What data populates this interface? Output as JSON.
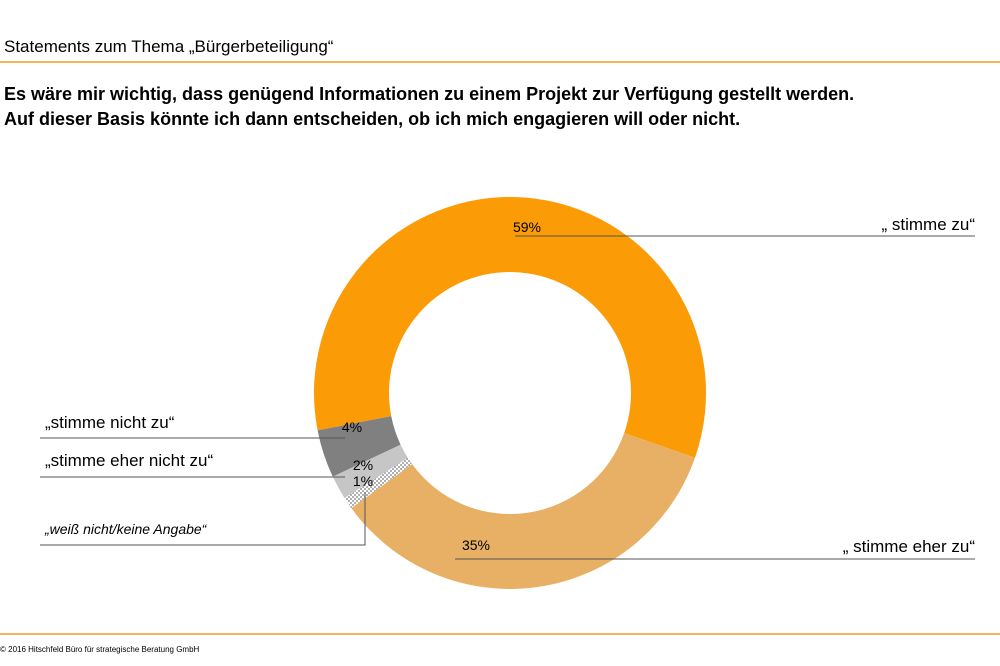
{
  "header": "Statements zum Thema „Bürgerbeteiligung“",
  "chart_data": {
    "type": "pie",
    "title": [
      "Es wäre mir wichtig, dass genügend Informationen zu einem Projekt zur Verfügung gestellt werden.",
      "Auf dieser Basis könnte ich dann entscheiden, ob ich mich engagieren will oder nicht."
    ],
    "categories": [
      "„ stimme zu“",
      "„ stimme eher zu“",
      "„weiß nicht/keine Angabe“",
      "„stimme eher nicht zu“",
      "„stimme nicht zu“"
    ],
    "values": [
      59,
      35,
      1,
      2,
      4
    ],
    "value_labels": [
      "59%",
      "35%",
      "1%",
      "2%",
      "4%"
    ],
    "colors": [
      "#fb9b06",
      "#e7b064",
      "dotted",
      "#c6c6c6",
      "#808080"
    ]
  },
  "footer": "© 2016 Hitschfeld Büro für strategische Beratung GmbH"
}
